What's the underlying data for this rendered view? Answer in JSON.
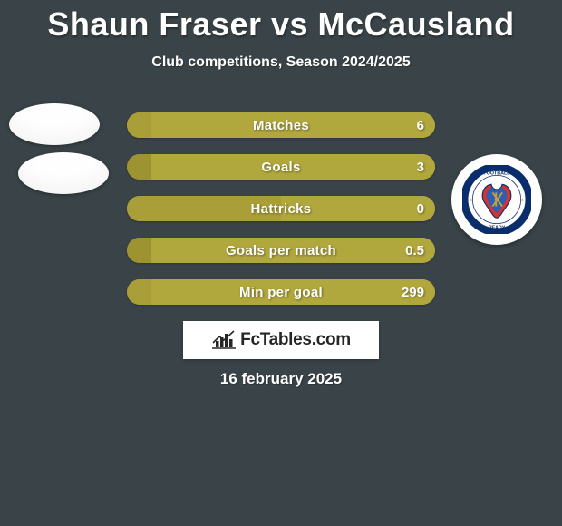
{
  "title": "Shaun Fraser vs McCausland",
  "subtitle": "Club competitions, Season 2024/2025",
  "date": "16 february 2025",
  "logo_text": "FcTables.com",
  "colors": {
    "background": "#3a4448",
    "bar_left": "#a99e38",
    "bar_left2": "#9d9331",
    "bar_right": "#b0a73d",
    "text": "#ffffff",
    "badge_ring": "#0a2e6b",
    "badge_accent": "#d7322e",
    "badge_gold": "#c9a03b"
  },
  "bars": [
    {
      "label": "Matches",
      "left_value": "",
      "right_value": "6",
      "left_pct": 8,
      "right_pct": 92
    },
    {
      "label": "Goals",
      "left_value": "",
      "right_value": "3",
      "left_pct": 8,
      "right_pct": 92
    },
    {
      "label": "Hattricks",
      "left_value": "",
      "right_value": "0",
      "left_pct": 50,
      "right_pct": 50
    },
    {
      "label": "Goals per match",
      "left_value": "",
      "right_value": "0.5",
      "left_pct": 8,
      "right_pct": 92
    },
    {
      "label": "Min per goal",
      "left_value": "",
      "right_value": "299",
      "left_pct": 8,
      "right_pct": 92
    }
  ]
}
